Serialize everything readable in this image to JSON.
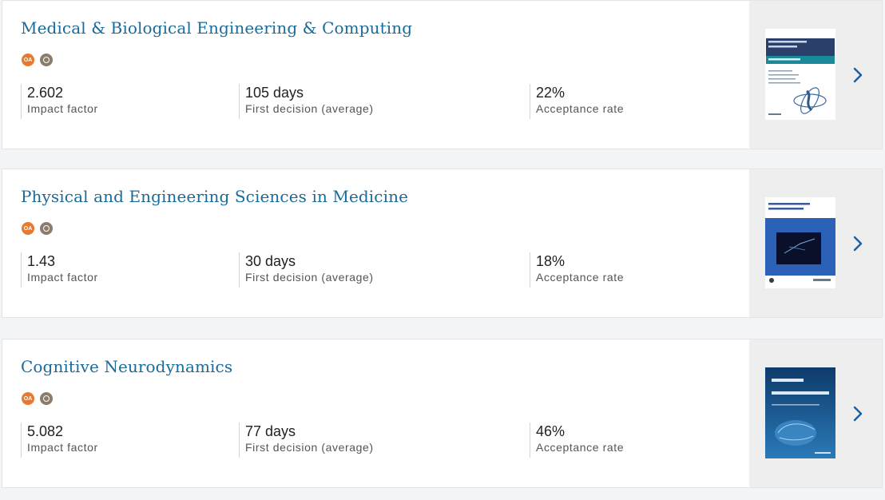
{
  "journals": [
    {
      "title": "Medical & Biological Engineering & Computing",
      "badges": {
        "open_access": "OA",
        "icon_names": [
          "open-access-icon",
          "peer-review-icon"
        ]
      },
      "impact_factor": {
        "value": "2.602",
        "label": "Impact factor"
      },
      "first_decision": {
        "value": "105 days",
        "label": "First decision (average)"
      },
      "acceptance_rate": {
        "value": "22%",
        "label": "Acceptance rate"
      },
      "cover": {
        "theme_colors": [
          "#ffffff",
          "#2a3f6a",
          "#1a8a9a"
        ]
      }
    },
    {
      "title": "Physical and Engineering Sciences in Medicine",
      "badges": {
        "open_access": "OA",
        "icon_names": [
          "open-access-icon",
          "peer-review-icon"
        ]
      },
      "impact_factor": {
        "value": "1.43",
        "label": "Impact factor"
      },
      "first_decision": {
        "value": "30 days",
        "label": "First decision (average)"
      },
      "acceptance_rate": {
        "value": "18%",
        "label": "Acceptance rate"
      },
      "cover": {
        "theme_colors": [
          "#ffffff",
          "#2b62b8",
          "#0a0f2a"
        ]
      }
    },
    {
      "title": "Cognitive Neurodynamics",
      "badges": {
        "open_access": "OA",
        "icon_names": [
          "open-access-icon",
          "peer-review-icon"
        ]
      },
      "impact_factor": {
        "value": "5.082",
        "label": "Impact factor"
      },
      "first_decision": {
        "value": "77 days",
        "label": "First decision (average)"
      },
      "acceptance_rate": {
        "value": "46%",
        "label": "Acceptance rate"
      },
      "cover": {
        "theme_colors": [
          "#0e3a6a",
          "#2a7ab8"
        ]
      }
    }
  ],
  "colors": {
    "title": "#1a6a9a",
    "chevron": "#1a5fa0",
    "badge_oa": "#e8792f",
    "badge_review": "#8c7c6c"
  },
  "icons": {
    "next": "chevron-right-icon"
  }
}
